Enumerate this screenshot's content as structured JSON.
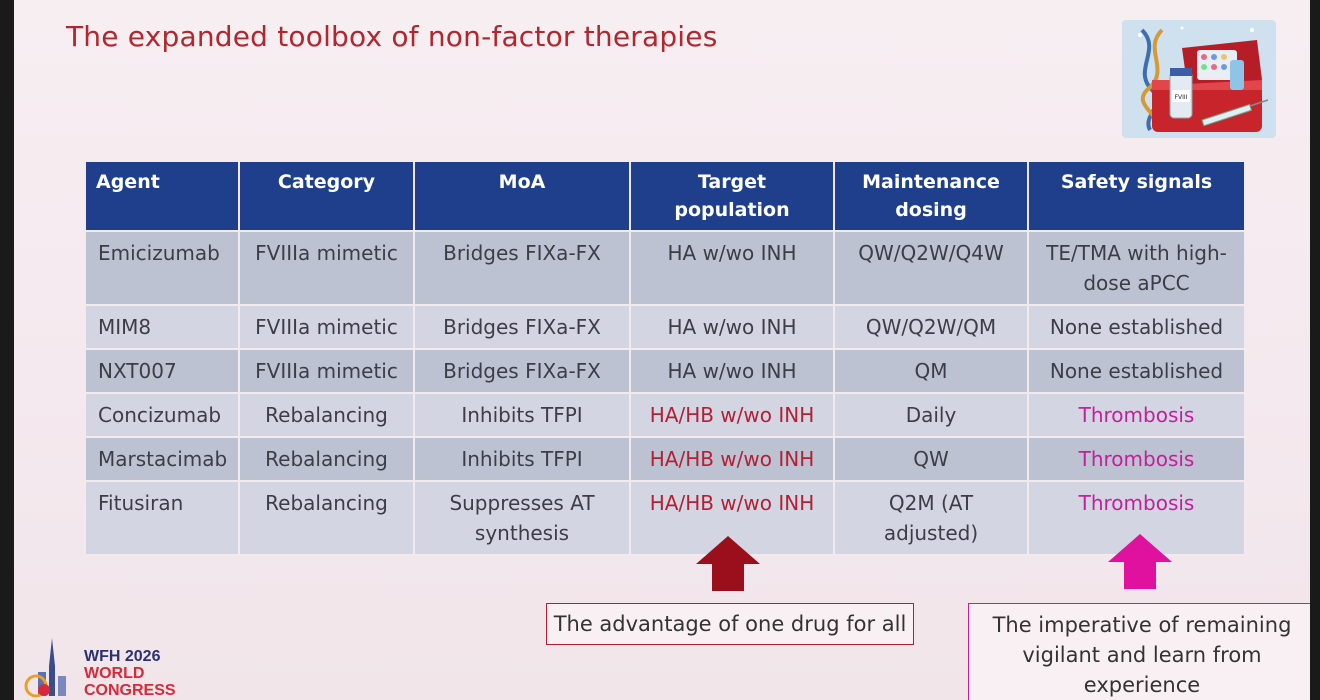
{
  "slide": {
    "title": "The expanded toolbox of non-factor therapies"
  },
  "table": {
    "headers": [
      "Agent",
      "Category",
      "MoA",
      "Target population",
      "Maintenance dosing",
      "Safety signals"
    ],
    "rows": [
      {
        "agent": "Emicizumab",
        "category": "FVIIIa mimetic",
        "moa": "Bridges FIXa-FX",
        "target": "HA w/wo INH",
        "dosing": "QW/Q2W/Q4W",
        "safety": "TE/TMA with high-dose aPCC"
      },
      {
        "agent": "MIM8",
        "category": "FVIIIa mimetic",
        "moa": "Bridges FIXa-FX",
        "target": "HA w/wo INH",
        "dosing": "QW/Q2W/QM",
        "safety": "None established"
      },
      {
        "agent": "NXT007",
        "category": "FVIIIa mimetic",
        "moa": "Bridges FIXa-FX",
        "target": "HA w/wo INH",
        "dosing": "QM",
        "safety": "None established"
      },
      {
        "agent": "Concizumab",
        "category": "Rebalancing",
        "moa": "Inhibits TFPI",
        "target": "HA/HB w/wo INH",
        "dosing": "Daily",
        "safety": "Thrombosis"
      },
      {
        "agent": "Marstacimab",
        "category": "Rebalancing",
        "moa": "Inhibits TFPI",
        "target": "HA/HB w/wo INH",
        "dosing": "QW",
        "safety": "Thrombosis"
      },
      {
        "agent": "Fitusiran",
        "category": "Rebalancing",
        "moa": "Suppresses AT synthesis",
        "target": "HA/HB w/wo INH",
        "dosing": "Q2M (AT adjusted)",
        "safety": "Thrombosis"
      }
    ]
  },
  "callouts": {
    "left": "The advantage of one drug for all",
    "right": "The imperative of remaining vigilant and learn from experience"
  },
  "logo": {
    "line1": "WFH 2026",
    "line2": "WORLD",
    "line3": "CONGRESS"
  },
  "image": {
    "vial_label": "FVIII"
  },
  "colors": {
    "title": "#b1272f",
    "header_bg": "#1f3f8c",
    "emphasis_red": "#b32034",
    "emphasis_magenta": "#c2209a",
    "arrow_left": "#9b0f1c",
    "arrow_right": "#e0119f"
  },
  "icons": [
    "toolbox-image",
    "arrow-up-icon",
    "wfh-logo-icon"
  ]
}
